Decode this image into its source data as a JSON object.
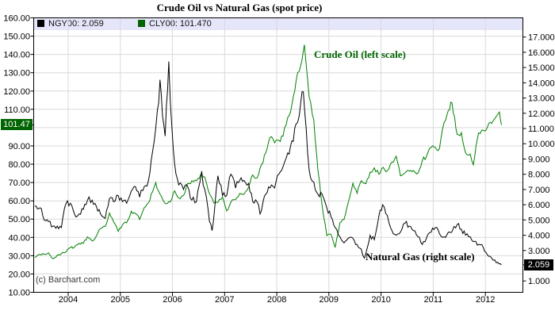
{
  "title": "Crude Oil vs Natural Gas (spot price)",
  "watermark": "(c) Barchart.com",
  "legend": {
    "items": [
      {
        "label": "NGY00: 2.059",
        "color": "#000000"
      },
      {
        "label": "CLY00: 101.470",
        "color": "#006400"
      }
    ]
  },
  "annotations": {
    "crude": "Crude Oil (left scale)",
    "gas": "Natural Gas (right scale)"
  },
  "current_values": {
    "left_label": "101.47",
    "right_label": "2.059"
  },
  "colors": {
    "crude_line": "#008000",
    "gas_line": "#000000",
    "grid": "#d9d9d9",
    "legend_bg": "#e6e6fa",
    "left_box_bg": "#006400",
    "right_box_bg": "#000000",
    "annotation_green": "#006600"
  },
  "chart_data": {
    "type": "line",
    "title": "Crude Oil vs Natural Gas (spot price)",
    "grid": true,
    "legend_position": "top",
    "x_axis": {
      "range": [
        2003.35,
        2012.72
      ],
      "ticks": [
        2004,
        2005,
        2006,
        2007,
        2008,
        2009,
        2010,
        2011,
        2012
      ]
    },
    "left_axis": {
      "range": [
        10,
        160
      ],
      "ticks": [
        {
          "v": 160,
          "label": "160.00"
        },
        {
          "v": 150,
          "label": "150.00"
        },
        {
          "v": 140,
          "label": "140.00"
        },
        {
          "v": 130,
          "label": "130.00"
        },
        {
          "v": 120,
          "label": "120.00"
        },
        {
          "v": 110,
          "label": "110.00"
        },
        {
          "v": 90,
          "label": "90.00"
        },
        {
          "v": 80,
          "label": "80.00"
        },
        {
          "v": 70,
          "label": "70.00"
        },
        {
          "v": 60,
          "label": "60.00"
        },
        {
          "v": 50,
          "label": "50.00"
        },
        {
          "v": 40,
          "label": "40.00"
        },
        {
          "v": 30,
          "label": "30.00"
        },
        {
          "v": 20,
          "label": "20.00"
        },
        {
          "v": 10,
          "label": "10.00"
        }
      ],
      "gridlines": [
        150,
        140,
        130,
        120,
        110,
        100,
        90,
        80,
        70,
        60,
        50,
        40,
        30,
        20
      ],
      "current_value": 101.47,
      "current_label": "101.47"
    },
    "right_axis": {
      "range": [
        1,
        17
      ],
      "ticks": [
        {
          "v": 17,
          "label": "17.000"
        },
        {
          "v": 16,
          "label": "16.000"
        },
        {
          "v": 15,
          "label": "15.000"
        },
        {
          "v": 14,
          "label": "14.000"
        },
        {
          "v": 13,
          "label": "13.000"
        },
        {
          "v": 12,
          "label": "12.000"
        },
        {
          "v": 11,
          "label": "11.000"
        },
        {
          "v": 10,
          "label": "10.000"
        },
        {
          "v": 9,
          "label": "9.000"
        },
        {
          "v": 8,
          "label": "8.000"
        },
        {
          "v": 7,
          "label": "7.000"
        },
        {
          "v": 6,
          "label": "6.000"
        },
        {
          "v": 5,
          "label": "5.000"
        },
        {
          "v": 4,
          "label": "4.000"
        },
        {
          "v": 3,
          "label": "3.000"
        },
        {
          "v": 1,
          "label": "1.000"
        }
      ],
      "current_value": 2.059,
      "current_label": "2.059"
    },
    "series": [
      {
        "name": "CLY00",
        "description": "Crude Oil (left scale)",
        "axis": "left",
        "color": "#008000",
        "last_value": 101.47,
        "points": [
          [
            2003.36,
            29.0
          ],
          [
            2003.46,
            30.7
          ],
          [
            2003.54,
            30.8
          ],
          [
            2003.62,
            31.6
          ],
          [
            2003.71,
            28.3
          ],
          [
            2003.79,
            30.3
          ],
          [
            2003.87,
            31.1
          ],
          [
            2003.96,
            32.1
          ],
          [
            2004.04,
            34.3
          ],
          [
            2004.12,
            34.7
          ],
          [
            2004.21,
            36.8
          ],
          [
            2004.29,
            36.7
          ],
          [
            2004.37,
            40.3
          ],
          [
            2004.46,
            38.0
          ],
          [
            2004.54,
            40.8
          ],
          [
            2004.62,
            44.9
          ],
          [
            2004.71,
            46.0
          ],
          [
            2004.79,
            53.3
          ],
          [
            2004.87,
            48.5
          ],
          [
            2004.96,
            43.3
          ],
          [
            2005.04,
            46.8
          ],
          [
            2005.12,
            48.0
          ],
          [
            2005.21,
            54.3
          ],
          [
            2005.29,
            53.0
          ],
          [
            2005.37,
            49.8
          ],
          [
            2005.46,
            56.3
          ],
          [
            2005.54,
            59.0
          ],
          [
            2005.62,
            65.0
          ],
          [
            2005.68,
            70.0
          ],
          [
            2005.73,
            65.5
          ],
          [
            2005.79,
            62.4
          ],
          [
            2005.87,
            58.3
          ],
          [
            2005.96,
            59.4
          ],
          [
            2006.04,
            65.5
          ],
          [
            2006.12,
            61.6
          ],
          [
            2006.21,
            62.9
          ],
          [
            2006.29,
            69.4
          ],
          [
            2006.37,
            70.9
          ],
          [
            2006.46,
            70.9
          ],
          [
            2006.54,
            74.4
          ],
          [
            2006.62,
            73.0
          ],
          [
            2006.71,
            63.9
          ],
          [
            2006.79,
            58.9
          ],
          [
            2006.87,
            59.1
          ],
          [
            2006.96,
            62.0
          ],
          [
            2007.04,
            54.5
          ],
          [
            2007.12,
            59.3
          ],
          [
            2007.21,
            60.6
          ],
          [
            2007.29,
            64.0
          ],
          [
            2007.37,
            63.5
          ],
          [
            2007.46,
            67.5
          ],
          [
            2007.54,
            74.1
          ],
          [
            2007.62,
            72.4
          ],
          [
            2007.71,
            79.9
          ],
          [
            2007.79,
            86.2
          ],
          [
            2007.87,
            94.6
          ],
          [
            2007.96,
            91.7
          ],
          [
            2008.04,
            93.0
          ],
          [
            2008.12,
            95.4
          ],
          [
            2008.21,
            105.5
          ],
          [
            2008.29,
            112.6
          ],
          [
            2008.37,
            125.4
          ],
          [
            2008.46,
            133.9
          ],
          [
            2008.53,
            145.3
          ],
          [
            2008.62,
            116.7
          ],
          [
            2008.71,
            104.1
          ],
          [
            2008.79,
            76.6
          ],
          [
            2008.87,
            57.3
          ],
          [
            2008.96,
            41.0
          ],
          [
            2009.04,
            41.7
          ],
          [
            2009.12,
            34.5
          ],
          [
            2009.21,
            48.0
          ],
          [
            2009.29,
            49.8
          ],
          [
            2009.37,
            59.0
          ],
          [
            2009.46,
            69.6
          ],
          [
            2009.54,
            64.1
          ],
          [
            2009.62,
            71.0
          ],
          [
            2009.71,
            69.4
          ],
          [
            2009.79,
            75.7
          ],
          [
            2009.87,
            78.0
          ],
          [
            2009.96,
            74.5
          ],
          [
            2010.04,
            78.3
          ],
          [
            2010.12,
            76.4
          ],
          [
            2010.21,
            81.2
          ],
          [
            2010.29,
            84.4
          ],
          [
            2010.37,
            73.7
          ],
          [
            2010.46,
            75.3
          ],
          [
            2010.54,
            76.3
          ],
          [
            2010.62,
            76.6
          ],
          [
            2010.71,
            75.2
          ],
          [
            2010.79,
            81.9
          ],
          [
            2010.87,
            84.2
          ],
          [
            2010.96,
            89.1
          ],
          [
            2011.04,
            89.2
          ],
          [
            2011.12,
            88.6
          ],
          [
            2011.21,
            102.9
          ],
          [
            2011.29,
            109.5
          ],
          [
            2011.36,
            113.5
          ],
          [
            2011.46,
            96.3
          ],
          [
            2011.54,
            97.3
          ],
          [
            2011.62,
            86.3
          ],
          [
            2011.71,
            85.5
          ],
          [
            2011.77,
            79.7
          ],
          [
            2011.87,
            97.1
          ],
          [
            2011.96,
            98.6
          ],
          [
            2012.04,
            100.3
          ],
          [
            2012.12,
            102.3
          ],
          [
            2012.21,
            106.2
          ],
          [
            2012.27,
            108.5
          ],
          [
            2012.31,
            101.47
          ]
        ]
      },
      {
        "name": "NGY00",
        "description": "Natural Gas (right scale)",
        "axis": "right",
        "color": "#000000",
        "last_value": 2.059,
        "points": [
          [
            2003.36,
            5.9
          ],
          [
            2003.46,
            5.8
          ],
          [
            2003.54,
            5.0
          ],
          [
            2003.62,
            4.9
          ],
          [
            2003.71,
            4.6
          ],
          [
            2003.79,
            4.6
          ],
          [
            2003.87,
            4.5
          ],
          [
            2003.96,
            6.1
          ],
          [
            2004.04,
            6.1
          ],
          [
            2004.12,
            5.4
          ],
          [
            2004.21,
            5.4
          ],
          [
            2004.29,
            5.7
          ],
          [
            2004.37,
            6.3
          ],
          [
            2004.46,
            6.3
          ],
          [
            2004.54,
            5.9
          ],
          [
            2004.62,
            5.4
          ],
          [
            2004.71,
            5.1
          ],
          [
            2004.79,
            6.4
          ],
          [
            2004.87,
            6.2
          ],
          [
            2004.96,
            6.6
          ],
          [
            2005.04,
            6.2
          ],
          [
            2005.12,
            6.1
          ],
          [
            2005.21,
            6.9
          ],
          [
            2005.29,
            7.2
          ],
          [
            2005.37,
            6.5
          ],
          [
            2005.46,
            7.2
          ],
          [
            2005.54,
            7.6
          ],
          [
            2005.62,
            9.5
          ],
          [
            2005.71,
            12.2
          ],
          [
            2005.76,
            14.2
          ],
          [
            2005.81,
            11.8
          ],
          [
            2005.86,
            10.5
          ],
          [
            2005.93,
            15.4
          ],
          [
            2005.99,
            11.0
          ],
          [
            2006.04,
            8.7
          ],
          [
            2006.12,
            7.3
          ],
          [
            2006.21,
            7.0
          ],
          [
            2006.29,
            7.2
          ],
          [
            2006.37,
            6.3
          ],
          [
            2006.46,
            6.2
          ],
          [
            2006.56,
            8.2
          ],
          [
            2006.62,
            7.0
          ],
          [
            2006.71,
            4.9
          ],
          [
            2006.76,
            4.3
          ],
          [
            2006.81,
            5.8
          ],
          [
            2006.87,
            7.9
          ],
          [
            2006.96,
            6.6
          ],
          [
            2007.04,
            6.6
          ],
          [
            2007.12,
            8.0
          ],
          [
            2007.21,
            7.1
          ],
          [
            2007.29,
            7.6
          ],
          [
            2007.37,
            7.6
          ],
          [
            2007.46,
            7.4
          ],
          [
            2007.54,
            6.2
          ],
          [
            2007.62,
            6.2
          ],
          [
            2007.68,
            5.4
          ],
          [
            2007.79,
            6.7
          ],
          [
            2007.87,
            7.1
          ],
          [
            2007.96,
            7.1
          ],
          [
            2008.04,
            8.0
          ],
          [
            2008.12,
            8.5
          ],
          [
            2008.21,
            9.4
          ],
          [
            2008.29,
            10.2
          ],
          [
            2008.37,
            11.3
          ],
          [
            2008.46,
            12.7
          ],
          [
            2008.51,
            13.4
          ],
          [
            2008.62,
            8.3
          ],
          [
            2008.71,
            7.5
          ],
          [
            2008.79,
            6.7
          ],
          [
            2008.87,
            6.7
          ],
          [
            2008.96,
            5.8
          ],
          [
            2009.04,
            5.2
          ],
          [
            2009.12,
            4.5
          ],
          [
            2009.21,
            3.9
          ],
          [
            2009.29,
            3.5
          ],
          [
            2009.37,
            3.8
          ],
          [
            2009.46,
            3.8
          ],
          [
            2009.54,
            3.4
          ],
          [
            2009.62,
            3.1
          ],
          [
            2009.68,
            2.5
          ],
          [
            2009.79,
            4.0
          ],
          [
            2009.87,
            3.7
          ],
          [
            2009.96,
            5.3
          ],
          [
            2010.03,
            6.0
          ],
          [
            2010.12,
            5.3
          ],
          [
            2010.21,
            4.3
          ],
          [
            2010.29,
            4.0
          ],
          [
            2010.37,
            4.2
          ],
          [
            2010.46,
            4.8
          ],
          [
            2010.54,
            4.6
          ],
          [
            2010.62,
            4.3
          ],
          [
            2010.71,
            3.9
          ],
          [
            2010.79,
            3.4
          ],
          [
            2010.87,
            3.8
          ],
          [
            2010.96,
            4.2
          ],
          [
            2011.04,
            4.5
          ],
          [
            2011.12,
            4.1
          ],
          [
            2011.21,
            3.9
          ],
          [
            2011.29,
            4.2
          ],
          [
            2011.37,
            4.3
          ],
          [
            2011.46,
            4.7
          ],
          [
            2011.54,
            4.4
          ],
          [
            2011.62,
            4.0
          ],
          [
            2011.71,
            3.9
          ],
          [
            2011.79,
            3.6
          ],
          [
            2011.87,
            3.4
          ],
          [
            2011.96,
            3.2
          ],
          [
            2012.04,
            2.7
          ],
          [
            2012.12,
            2.5
          ],
          [
            2012.21,
            2.2
          ],
          [
            2012.31,
            2.059
          ]
        ]
      }
    ]
  }
}
